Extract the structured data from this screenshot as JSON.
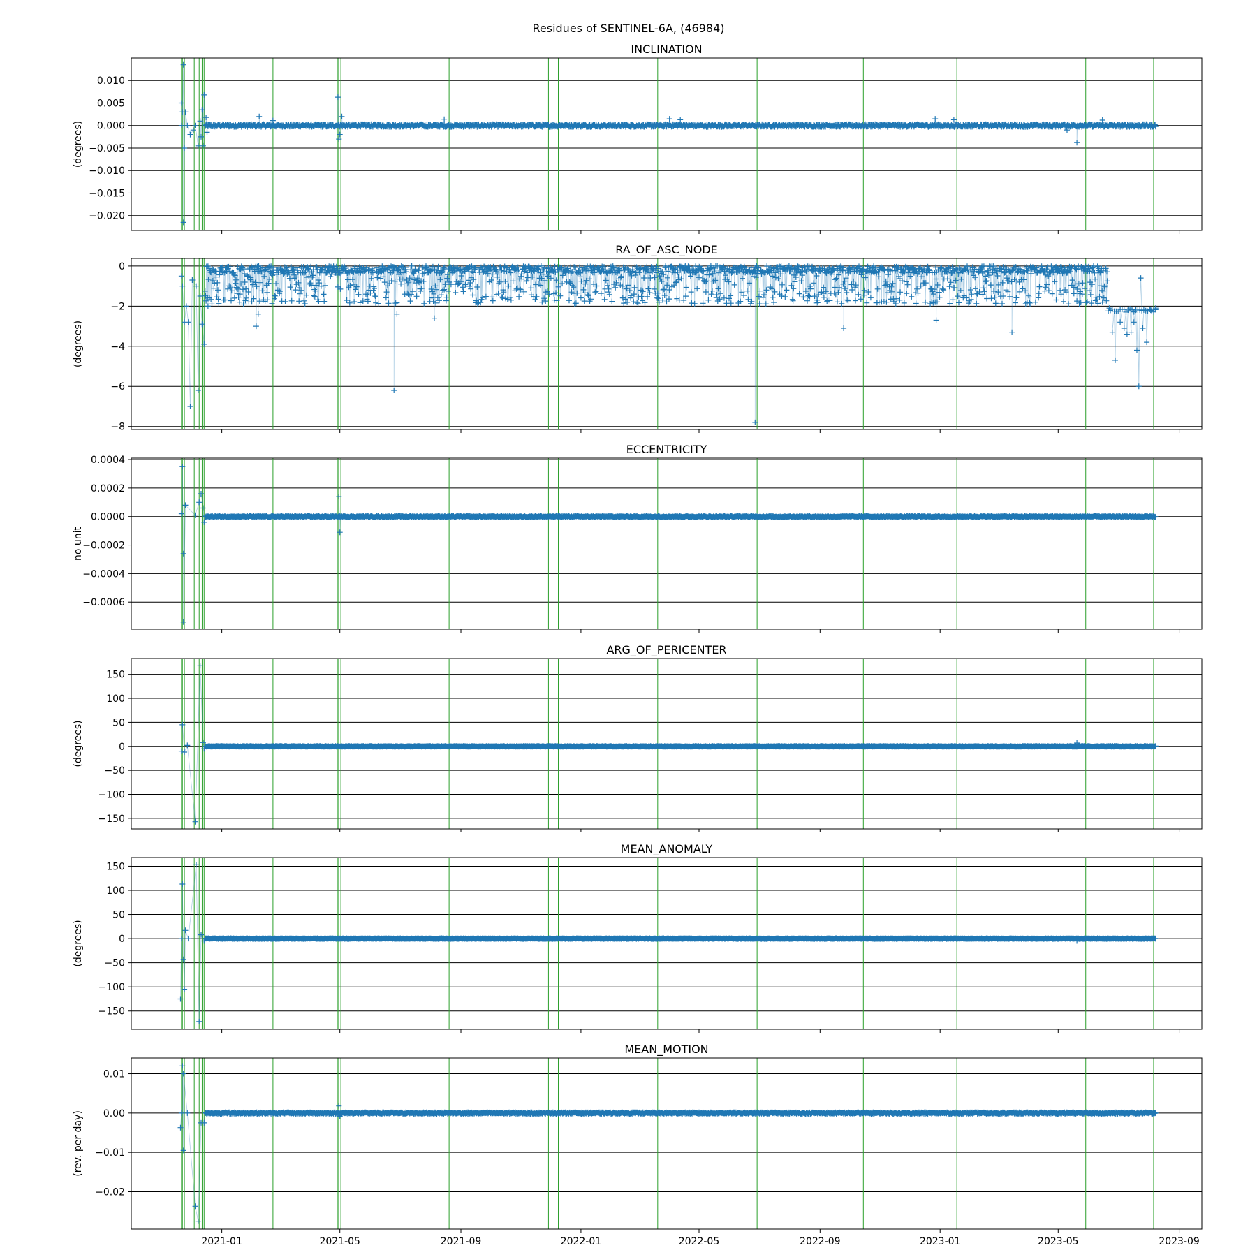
{
  "suptitle": "Residues of SENTINEL-6A, (46984)",
  "chart_data": [
    {
      "type": "line",
      "title": "INCLINATION",
      "ylabel": "(degrees)",
      "xlabel": "",
      "ylim": [
        -0.0233,
        0.015
      ],
      "yticks": [
        0.01,
        0.005,
        0.0,
        -0.005,
        -0.01,
        -0.015,
        -0.02
      ],
      "ytick_labels": [
        "0.010",
        "0.005",
        "0.000",
        "−0.005",
        "−0.010",
        "−0.015",
        "−0.020"
      ],
      "grid": "horizontal",
      "series": [
        {
          "color": "#1f77b4",
          "marker": "+",
          "baseline": 0.0,
          "noise": 0.0003,
          "range_end": "2023-08-08",
          "points": [
            [
              "2020-11-21",
              0.0
            ],
            [
              "2020-11-21",
              0.005
            ],
            [
              "2020-11-22",
              0.003
            ],
            [
              "2020-11-23",
              0.0135
            ],
            [
              "2020-11-23",
              -0.0215
            ],
            [
              "2020-11-24",
              -0.005
            ],
            [
              "2020-11-25",
              0.003
            ],
            [
              "2020-11-27",
              0.0
            ],
            [
              "2020-11-30",
              -0.002
            ],
            [
              "2020-12-03",
              -0.001
            ],
            [
              "2020-12-05",
              0.0
            ],
            [
              "2020-12-08",
              -0.0045
            ],
            [
              "2020-12-10",
              0.001
            ],
            [
              "2020-12-11",
              -0.0025
            ],
            [
              "2020-12-12",
              0.0035
            ],
            [
              "2020-12-13",
              -0.0045
            ],
            [
              "2020-12-14",
              0.0068
            ],
            [
              "2020-12-16",
              0.0018
            ],
            [
              "2020-12-17",
              -0.0015
            ],
            [
              "2021-02-08",
              0.002
            ],
            [
              "2021-02-22",
              0.0011
            ],
            [
              "2021-04-29",
              0.0063
            ],
            [
              "2021-04-30",
              -0.003
            ],
            [
              "2021-05-01",
              -0.002
            ],
            [
              "2021-05-03",
              0.002
            ],
            [
              "2021-08-15",
              0.0014
            ],
            [
              "2022-04-01",
              0.0015
            ],
            [
              "2022-04-12",
              0.0013
            ],
            [
              "2022-12-27",
              0.0015
            ],
            [
              "2023-01-15",
              0.0013
            ],
            [
              "2023-05-10",
              -0.001
            ],
            [
              "2023-05-20",
              -0.0038
            ],
            [
              "2023-06-15",
              0.0012
            ]
          ]
        }
      ]
    },
    {
      "type": "line",
      "title": "RA_OF_ASC_NODE",
      "ylabel": "(degrees)",
      "xlabel": "",
      "ylim": [
        -8.15,
        0.38
      ],
      "yticks": [
        0,
        -2,
        -4,
        -6,
        -8
      ],
      "ytick_labels": [
        "0",
        "−2",
        "−4",
        "−6",
        "−8"
      ],
      "grid": "horizontal",
      "series": [
        {
          "color": "#1f77b4",
          "marker": "+",
          "band": [
            -1.9,
            0.0
          ],
          "range_end": "2023-06-20",
          "points": [
            [
              "2020-11-21",
              -0.5
            ],
            [
              "2020-11-22",
              -1.0
            ],
            [
              "2020-11-24",
              -2.8
            ],
            [
              "2020-11-26",
              -2.0
            ],
            [
              "2020-11-28",
              -2.8
            ],
            [
              "2020-11-30",
              -7.0
            ],
            [
              "2020-12-02",
              -0.7
            ],
            [
              "2020-12-06",
              -1.0
            ],
            [
              "2020-12-08",
              -6.2
            ],
            [
              "2020-12-10",
              -1.5
            ],
            [
              "2020-12-12",
              -2.9
            ],
            [
              "2020-12-14",
              -3.9
            ],
            [
              "2020-12-18",
              -2.0
            ],
            [
              "2021-02-05",
              -3.0
            ],
            [
              "2021-02-07",
              -2.4
            ],
            [
              "2021-06-25",
              -6.2
            ],
            [
              "2021-06-28",
              -2.4
            ],
            [
              "2021-08-05",
              -2.6
            ],
            [
              "2022-06-27",
              -7.8
            ],
            [
              "2022-09-25",
              -3.1
            ],
            [
              "2022-12-28",
              -2.7
            ],
            [
              "2023-03-15",
              -3.3
            ],
            [
              "2023-06-22",
              -2.1
            ],
            [
              "2023-06-25",
              -3.3
            ],
            [
              "2023-06-28",
              -4.7
            ],
            [
              "2023-07-03",
              -2.8
            ],
            [
              "2023-07-07",
              -3.1
            ],
            [
              "2023-07-10",
              -3.4
            ],
            [
              "2023-07-14",
              -3.3
            ],
            [
              "2023-07-17",
              -2.8
            ],
            [
              "2023-07-20",
              -4.2
            ],
            [
              "2023-07-22",
              -6.0
            ],
            [
              "2023-07-24",
              -0.6
            ],
            [
              "2023-07-26",
              -3.1
            ],
            [
              "2023-07-30",
              -3.8
            ],
            [
              "2023-08-03",
              -2.2
            ],
            [
              "2023-08-08",
              -2.1
            ]
          ]
        }
      ]
    },
    {
      "type": "line",
      "title": "ECCENTRICITY",
      "ylabel": "no unit",
      "xlabel": "",
      "ylim": [
        -0.00079,
        0.00041
      ],
      "yticks": [
        0.0004,
        0.0002,
        0.0,
        -0.0002,
        -0.0004,
        -0.0006
      ],
      "ytick_labels": [
        "0.0004",
        "0.0002",
        "0.0000",
        "−0.0002",
        "−0.0004",
        "−0.0006"
      ],
      "grid": "horizontal",
      "series": [
        {
          "color": "#1f77b4",
          "marker": "+",
          "baseline": 0.0,
          "noise": 4e-06,
          "range_end": "2023-08-08",
          "points": [
            [
              "2020-11-21",
              2e-05
            ],
            [
              "2020-11-22",
              0.00035
            ],
            [
              "2020-11-23",
              -0.00026
            ],
            [
              "2020-11-23",
              -0.00074
            ],
            [
              "2020-11-25",
              8e-05
            ],
            [
              "2020-12-05",
              1e-05
            ],
            [
              "2020-12-09",
              0.0001
            ],
            [
              "2020-12-11",
              0.00016
            ],
            [
              "2020-12-13",
              6e-05
            ],
            [
              "2020-12-14",
              -4e-05
            ],
            [
              "2021-04-30",
              0.00014
            ],
            [
              "2021-05-01",
              -0.00011
            ]
          ]
        }
      ]
    },
    {
      "type": "line",
      "title": "ARG_OF_PERICENTER",
      "ylabel": "(degrees)",
      "xlabel": "",
      "ylim": [
        -172,
        183
      ],
      "yticks": [
        150,
        100,
        50,
        0,
        -50,
        -100,
        -150
      ],
      "ytick_labels": [
        "150",
        "100",
        "50",
        "0",
        "−50",
        "−100",
        "−150"
      ],
      "grid": "horizontal",
      "series": [
        {
          "color": "#1f77b4",
          "marker": "+",
          "baseline": 0.0,
          "noise": 0.8,
          "range_end": "2023-08-08",
          "points": [
            [
              "2020-11-21",
              -10
            ],
            [
              "2020-11-22",
              45
            ],
            [
              "2020-11-24",
              -12
            ],
            [
              "2020-11-27",
              2
            ],
            [
              "2020-12-05",
              -157
            ],
            [
              "2020-12-10",
              168
            ],
            [
              "2020-12-13",
              8
            ],
            [
              "2020-12-14",
              -5
            ],
            [
              "2023-05-20",
              7
            ]
          ]
        }
      ]
    },
    {
      "type": "line",
      "title": "MEAN_ANOMALY",
      "ylabel": "(degrees)",
      "xlabel": "",
      "ylim": [
        -188,
        168
      ],
      "yticks": [
        150,
        100,
        50,
        0,
        -50,
        -100,
        -150
      ],
      "ytick_labels": [
        "150",
        "100",
        "50",
        "0",
        "−50",
        "−100",
        "−150"
      ],
      "grid": "horizontal",
      "series": [
        {
          "color": "#1f77b4",
          "marker": "+",
          "baseline": 0.0,
          "noise": 0.8,
          "range_end": "2023-08-08",
          "points": [
            [
              "2020-11-20",
              -125
            ],
            [
              "2020-11-21",
              0
            ],
            [
              "2020-11-22",
              113
            ],
            [
              "2020-11-23",
              -43
            ],
            [
              "2020-11-24",
              -105
            ],
            [
              "2020-11-25",
              17
            ],
            [
              "2020-11-28",
              0
            ],
            [
              "2020-12-06",
              153
            ],
            [
              "2020-12-09",
              -172
            ],
            [
              "2020-12-11",
              8
            ],
            [
              "2020-12-14",
              -5
            ],
            [
              "2023-05-20",
              -5
            ]
          ]
        }
      ]
    },
    {
      "type": "line",
      "title": "MEAN_MOTION",
      "ylabel": "(rev. per day)",
      "xlabel": "",
      "ylim": [
        -0.0295,
        0.014
      ],
      "yticks": [
        0.01,
        0.0,
        -0.01,
        -0.02
      ],
      "ytick_labels": [
        "0.01",
        "0.00",
        "−0.01",
        "−0.02"
      ],
      "grid": "horizontal",
      "series": [
        {
          "color": "#1f77b4",
          "marker": "+",
          "baseline": 0.0,
          "noise": 0.0002,
          "range_end": "2023-08-08",
          "points": [
            [
              "2020-11-20",
              -0.0037
            ],
            [
              "2020-11-21",
              0.0
            ],
            [
              "2020-11-22",
              0.012
            ],
            [
              "2020-11-23",
              -0.0095
            ],
            [
              "2020-11-23",
              0.01
            ],
            [
              "2020-11-27",
              0.0
            ],
            [
              "2020-12-05",
              -0.0237
            ],
            [
              "2020-12-08",
              -0.0275
            ],
            [
              "2020-12-11",
              -0.0025
            ],
            [
              "2020-12-14",
              -0.0025
            ],
            [
              "2021-04-30",
              0.0018
            ],
            [
              "2021-05-01",
              -0.0008
            ]
          ]
        }
      ]
    }
  ],
  "x_axis": {
    "xlim": [
      "2020-10-01",
      "2023-09-24"
    ],
    "ticks": [
      "2021-01-01",
      "2021-05-01",
      "2021-09-01",
      "2022-01-01",
      "2022-05-01",
      "2022-09-01",
      "2023-01-01",
      "2023-05-01",
      "2023-09-01"
    ],
    "tick_labels": [
      "2021-01",
      "2021-05",
      "2021-09",
      "2022-01",
      "2022-05",
      "2022-09",
      "2023-01",
      "2023-05",
      "2023-09"
    ]
  },
  "event_lines": {
    "color": "#2ca02c",
    "dates": [
      "2020-11-21",
      "2020-11-22",
      "2020-11-24",
      "2020-12-04",
      "2020-12-09",
      "2020-12-12",
      "2020-12-14",
      "2021-02-22",
      "2021-04-29",
      "2021-04-30",
      "2021-05-02",
      "2021-08-20",
      "2021-11-29",
      "2021-12-09",
      "2022-03-20",
      "2022-06-29",
      "2022-10-15",
      "2023-01-18",
      "2023-05-29",
      "2023-08-06"
    ]
  }
}
